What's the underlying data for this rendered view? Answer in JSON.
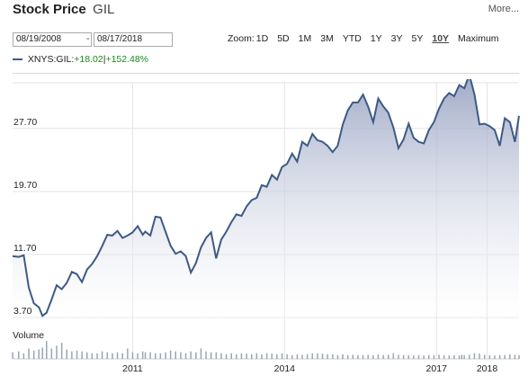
{
  "header": {
    "title": "Stock Price",
    "symbol": "GIL",
    "more_label": "More..."
  },
  "range": {
    "from": "08/19/2008",
    "separator": "-",
    "to": "08/17/2018"
  },
  "zoom": {
    "label": "Zoom:",
    "options": [
      "1D",
      "5D",
      "1M",
      "3M",
      "YTD",
      "1Y",
      "3Y",
      "5Y",
      "10Y",
      "Maximum"
    ],
    "active": "10Y"
  },
  "legend": {
    "series": "XNYS:GIL:",
    "change_abs": "+18.02",
    "sep": "|",
    "change_pct": "+152.48%"
  },
  "volume_label": "Volume",
  "colors": {
    "line": "#3d5a85",
    "fill_top": "#9aa5c4",
    "fill_bottom": "#ffffff",
    "positive": "#1a8a1a",
    "volume": "#9aa3b8"
  },
  "chart_data": {
    "type": "area",
    "y_ticks": [
      "3.70",
      "11.70",
      "19.70",
      "27.70"
    ],
    "y_tick_values": [
      3.7,
      11.7,
      19.7,
      27.7
    ],
    "ylim": [
      3.7,
      33.5
    ],
    "xlim": [
      2008.63,
      2018.63
    ],
    "x_ticks": [
      "2011",
      "2014",
      "2017",
      "2018"
    ],
    "x_tick_values": [
      2011.0,
      2014.0,
      2017.0,
      2018.0
    ],
    "x": [
      2008.63,
      2008.75,
      2008.85,
      2008.95,
      2009.05,
      2009.15,
      2009.22,
      2009.3,
      2009.4,
      2009.5,
      2009.6,
      2009.7,
      2009.8,
      2009.9,
      2010.0,
      2010.1,
      2010.2,
      2010.3,
      2010.4,
      2010.5,
      2010.6,
      2010.7,
      2010.8,
      2010.9,
      2011.0,
      2011.1,
      2011.2,
      2011.25,
      2011.35,
      2011.45,
      2011.55,
      2011.65,
      2011.75,
      2011.85,
      2011.95,
      2012.05,
      2012.15,
      2012.25,
      2012.35,
      2012.45,
      2012.55,
      2012.65,
      2012.75,
      2012.85,
      2012.95,
      2013.05,
      2013.15,
      2013.25,
      2013.35,
      2013.45,
      2013.55,
      2013.65,
      2013.75,
      2013.85,
      2013.95,
      2014.05,
      2014.15,
      2014.25,
      2014.35,
      2014.45,
      2014.55,
      2014.65,
      2014.75,
      2014.85,
      2014.95,
      2015.05,
      2015.15,
      2015.25,
      2015.35,
      2015.45,
      2015.55,
      2015.65,
      2015.75,
      2015.85,
      2015.95,
      2016.05,
      2016.15,
      2016.25,
      2016.35,
      2016.45,
      2016.55,
      2016.65,
      2016.75,
      2016.85,
      2016.95,
      2017.05,
      2017.15,
      2017.25,
      2017.35,
      2017.45,
      2017.5,
      2017.55,
      2017.65,
      2017.75,
      2017.85,
      2017.95,
      2018.05,
      2018.15,
      2018.25,
      2018.35,
      2018.45,
      2018.55,
      2018.63
    ],
    "values": [
      11.5,
      11.4,
      11.6,
      7.5,
      5.5,
      5.0,
      3.9,
      4.3,
      6.0,
      7.8,
      7.3,
      8.1,
      9.5,
      9.2,
      8.2,
      9.8,
      10.5,
      11.5,
      12.8,
      14.2,
      14.1,
      14.7,
      13.8,
      14.1,
      14.5,
      15.3,
      14.2,
      14.6,
      14.1,
      16.5,
      16.4,
      14.6,
      12.8,
      11.8,
      12.1,
      11.5,
      9.4,
      10.6,
      12.6,
      13.8,
      14.5,
      11.2,
      13.6,
      14.6,
      15.8,
      16.8,
      16.6,
      17.8,
      18.6,
      18.9,
      20.5,
      20.3,
      21.8,
      21.2,
      22.8,
      23.2,
      24.5,
      23.5,
      26.0,
      25.5,
      27.0,
      26.2,
      26.0,
      25.5,
      24.7,
      25.5,
      28.2,
      30.0,
      31.0,
      31.0,
      32.0,
      30.5,
      28.5,
      31.5,
      30.5,
      29.7,
      27.8,
      25.2,
      26.3,
      28.3,
      26.5,
      26.0,
      25.8,
      27.5,
      28.5,
      30.2,
      31.5,
      32.2,
      31.8,
      33.2,
      33.0,
      32.8,
      34.5,
      32.0,
      28.2,
      28.3,
      28.0,
      27.5,
      25.5,
      29.0,
      28.5,
      26.0,
      29.3
    ],
    "volume": [
      0.35,
      0.4,
      0.3,
      0.55,
      0.45,
      0.5,
      0.6,
      0.95,
      0.55,
      0.7,
      0.85,
      0.5,
      0.4,
      0.45,
      0.4,
      0.35,
      0.3,
      0.3,
      0.4,
      0.35,
      0.3,
      0.35,
      0.3,
      0.55,
      0.35,
      0.3,
      0.4,
      0.35,
      0.35,
      0.3,
      0.3,
      0.35,
      0.45,
      0.4,
      0.35,
      0.3,
      0.4,
      0.35,
      0.55,
      0.4,
      0.35,
      0.35,
      0.3,
      0.25,
      0.3,
      0.25,
      0.3,
      0.28,
      0.25,
      0.3,
      0.25,
      0.3,
      0.28,
      0.25,
      0.3,
      0.25,
      0.2,
      0.25,
      0.22,
      0.25,
      0.3,
      0.3,
      0.28,
      0.25,
      0.25,
      0.2,
      0.25,
      0.2,
      0.22,
      0.2,
      0.2,
      0.22,
      0.2,
      0.25,
      0.2,
      0.22,
      0.3,
      0.22,
      0.2,
      0.2,
      0.18,
      0.2,
      0.18,
      0.2,
      0.2,
      0.22,
      0.2,
      0.18,
      0.2,
      0.18,
      0.22,
      0.2,
      0.22,
      0.3,
      0.28,
      0.22,
      0.2,
      0.18,
      0.2,
      0.2,
      0.25,
      0.22,
      0.2
    ],
    "grid": true,
    "xlabel": "",
    "ylabel": ""
  }
}
